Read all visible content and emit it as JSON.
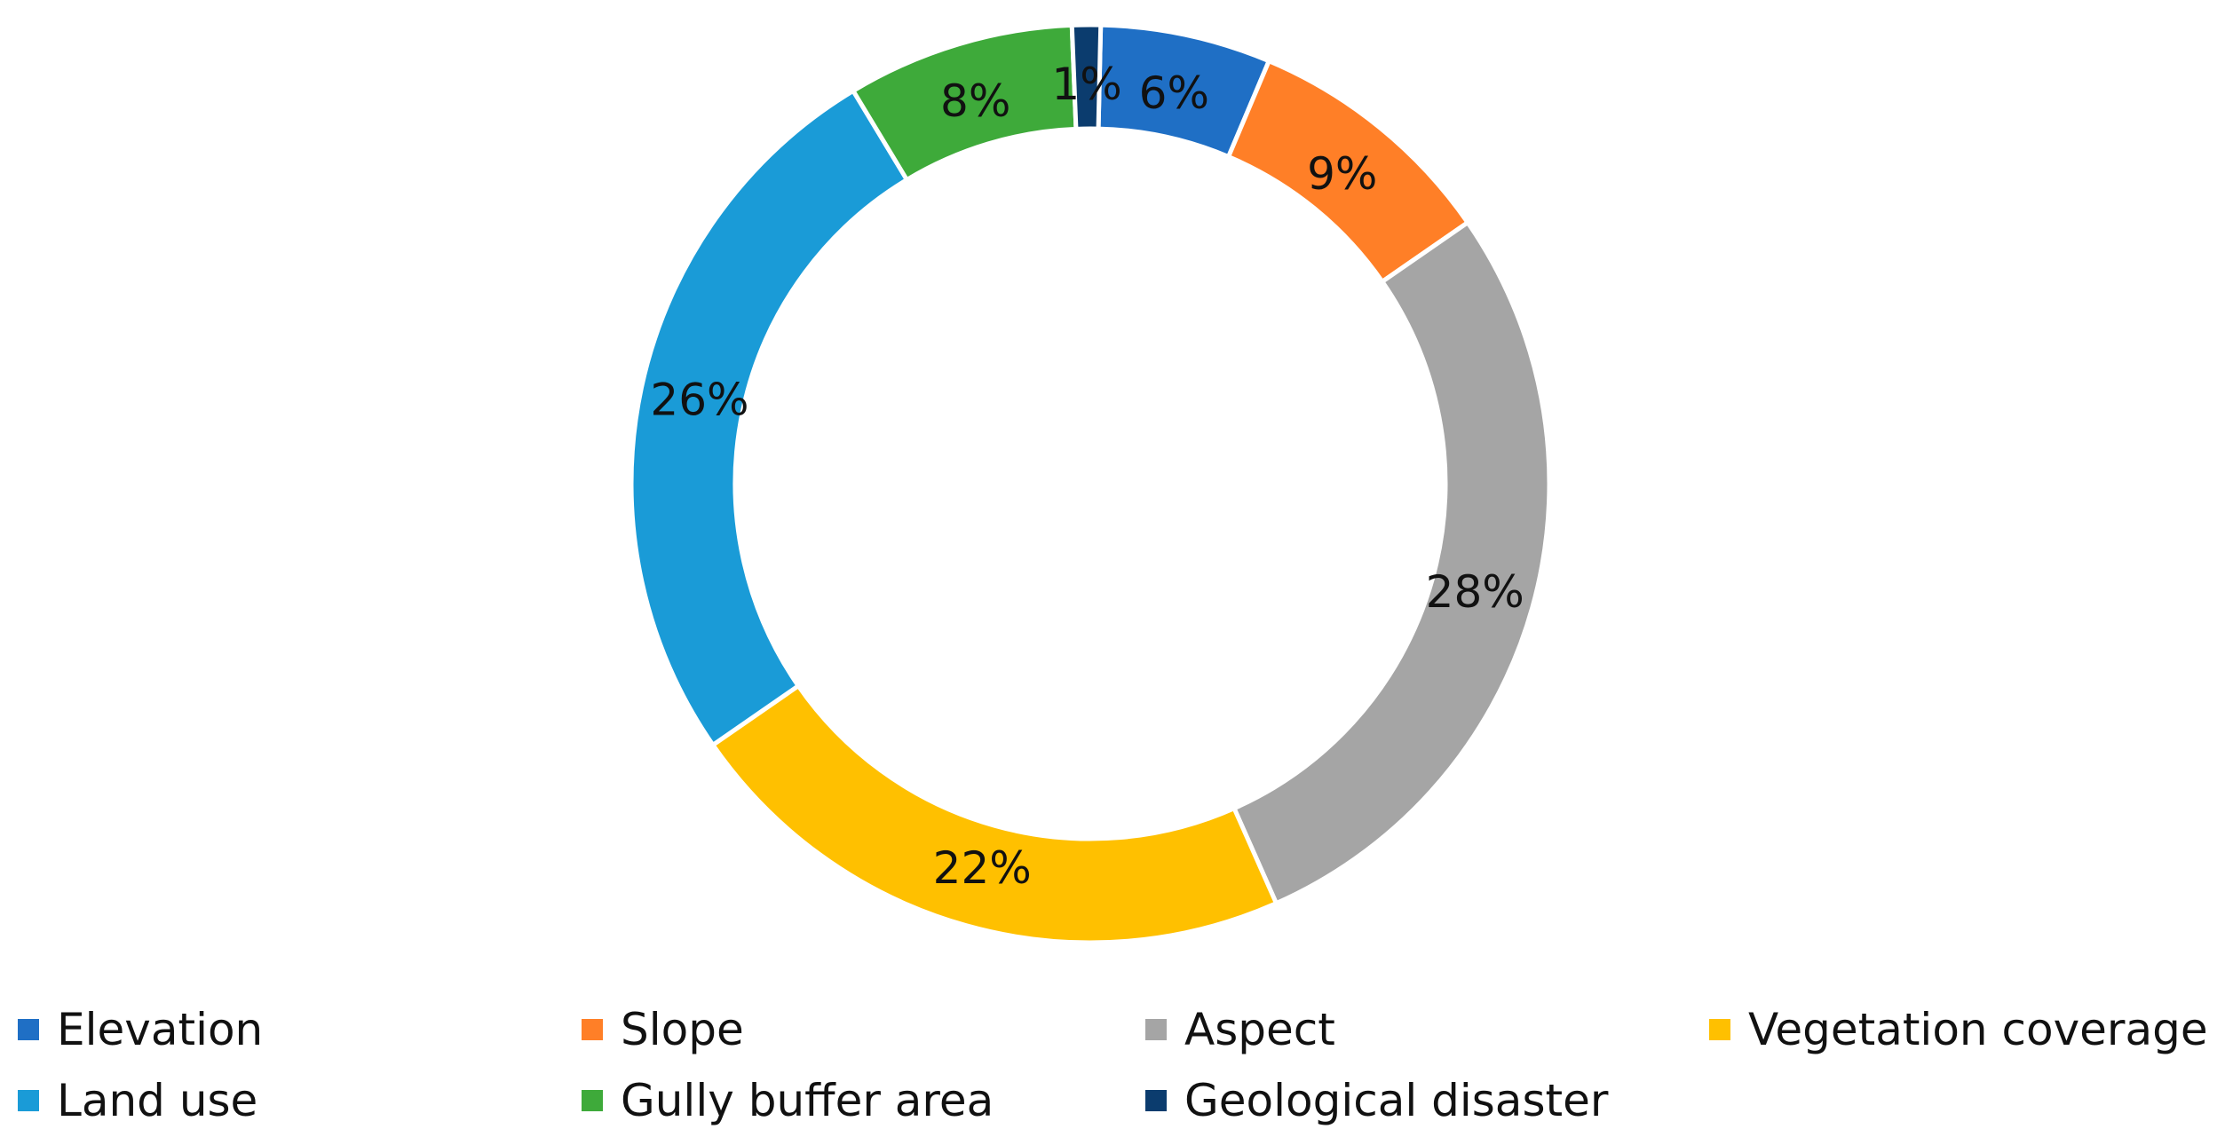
{
  "chart_data": {
    "type": "pie",
    "donut": true,
    "title": "",
    "slices": [
      {
        "name": "Elevation",
        "value": 6,
        "label": "6%",
        "color": "#1F6FC5"
      },
      {
        "name": "Slope",
        "value": 9,
        "label": "9%",
        "color": "#FF7F27"
      },
      {
        "name": "Aspect",
        "value": 28,
        "label": "28%",
        "color": "#A5A5A5"
      },
      {
        "name": "Vegetation coverage",
        "value": 22,
        "label": "22%",
        "color": "#FFC000"
      },
      {
        "name": "Land use",
        "value": 26,
        "label": "26%",
        "color": "#1A9BD7"
      },
      {
        "name": "Gully buffer area",
        "value": 8,
        "label": "8%",
        "color": "#3EAA3A"
      },
      {
        "name": "Geological disaster",
        "value": 1,
        "label": "1%",
        "color": "#0B3C6E"
      }
    ],
    "legend": {
      "position": "bottom",
      "order": [
        "Elevation",
        "Slope",
        "Aspect",
        "Vegetation coverage",
        "Land use",
        "Gully buffer area",
        "Geological disaster"
      ]
    }
  }
}
